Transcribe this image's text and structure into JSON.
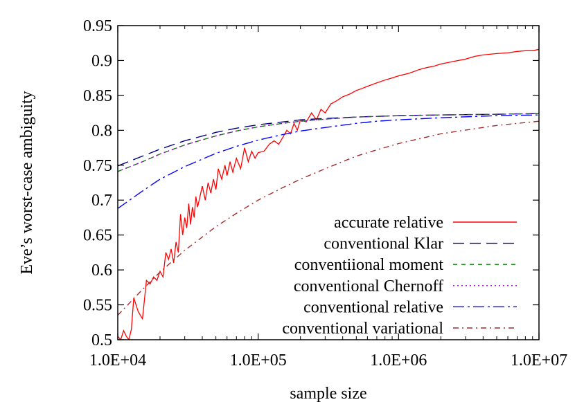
{
  "chart_data": {
    "type": "line",
    "xlabel": "sample size",
    "ylabel": "Eve’s worst-case ambiguity",
    "x_scale": "log",
    "xlim": [
      10000,
      10000000
    ],
    "ylim": [
      0.5,
      0.95
    ],
    "x_ticks": [
      {
        "value": 10000,
        "label": "1.0E+04"
      },
      {
        "value": 100000,
        "label": "1.0E+05"
      },
      {
        "value": 1000000,
        "label": "1.0E+06"
      },
      {
        "value": 10000000,
        "label": "1.0E+07"
      }
    ],
    "y_ticks": [
      {
        "value": 0.5,
        "label": "0.5"
      },
      {
        "value": 0.55,
        "label": "0.55"
      },
      {
        "value": 0.6,
        "label": "0.6"
      },
      {
        "value": 0.65,
        "label": "0.65"
      },
      {
        "value": 0.7,
        "label": "0.7"
      },
      {
        "value": 0.75,
        "label": "0.75"
      },
      {
        "value": 0.8,
        "label": "0.8"
      },
      {
        "value": 0.85,
        "label": "0.85"
      },
      {
        "value": 0.9,
        "label": "0.9"
      },
      {
        "value": 0.95,
        "label": "0.95"
      }
    ],
    "grid": false,
    "legend_position": "bottom-right",
    "series": [
      {
        "name": "accurate relative",
        "color": "#ff0000",
        "dash": "solid",
        "x": [
          10000,
          10500,
          11000,
          11500,
          12000,
          12500,
          13000,
          14000,
          15000,
          16000,
          17000,
          18000,
          19000,
          20000,
          21000,
          22000,
          23000,
          24000,
          25000,
          26000,
          27000,
          28000,
          29000,
          30000,
          31000,
          32000,
          33000,
          34000,
          35000,
          36000,
          37000,
          38000,
          40000,
          42000,
          44000,
          46000,
          48000,
          50000,
          52000,
          55000,
          58000,
          60000,
          63000,
          66000,
          70000,
          75000,
          80000,
          85000,
          90000,
          95000,
          100000,
          110000,
          120000,
          130000,
          140000,
          150000,
          160000,
          170000,
          180000,
          190000,
          200000,
          220000,
          240000,
          260000,
          280000,
          300000,
          330000,
          360000,
          400000,
          450000,
          500000,
          550000,
          600000,
          700000,
          800000,
          900000,
          1000000,
          1200000,
          1400000,
          1600000,
          1800000,
          2000000,
          2500000,
          3000000,
          3500000,
          4000000,
          5000000,
          6000000,
          7000000,
          8000000,
          9000000,
          10000000
        ],
        "values": [
          0.505,
          0.5,
          0.513,
          0.505,
          0.5,
          0.515,
          0.56,
          0.54,
          0.53,
          0.585,
          0.58,
          0.59,
          0.585,
          0.598,
          0.59,
          0.625,
          0.615,
          0.63,
          0.61,
          0.64,
          0.625,
          0.68,
          0.65,
          0.675,
          0.66,
          0.695,
          0.665,
          0.69,
          0.675,
          0.705,
          0.69,
          0.7,
          0.72,
          0.7,
          0.725,
          0.71,
          0.73,
          0.715,
          0.745,
          0.73,
          0.75,
          0.735,
          0.755,
          0.74,
          0.76,
          0.745,
          0.775,
          0.755,
          0.77,
          0.76,
          0.768,
          0.77,
          0.78,
          0.785,
          0.78,
          0.79,
          0.8,
          0.795,
          0.81,
          0.8,
          0.815,
          0.812,
          0.825,
          0.815,
          0.83,
          0.825,
          0.838,
          0.842,
          0.848,
          0.852,
          0.857,
          0.86,
          0.863,
          0.868,
          0.872,
          0.875,
          0.878,
          0.882,
          0.887,
          0.89,
          0.892,
          0.895,
          0.899,
          0.902,
          0.906,
          0.908,
          0.91,
          0.911,
          0.913,
          0.914,
          0.914,
          0.916
        ]
      },
      {
        "name": "conventional Klar",
        "color": "#000080",
        "dash": "16,8",
        "x": [
          10000,
          15000,
          20000,
          30000,
          50000,
          70000,
          100000,
          150000,
          200000,
          300000,
          500000,
          700000,
          1000000,
          2000000,
          5000000,
          10000000
        ],
        "values": [
          0.749,
          0.763,
          0.773,
          0.785,
          0.797,
          0.803,
          0.808,
          0.812,
          0.815,
          0.817,
          0.819,
          0.82,
          0.821,
          0.822,
          0.823,
          0.824
        ]
      },
      {
        "name": "conventiional moment",
        "color": "#008000",
        "dash": "6,6",
        "x": [
          10000,
          15000,
          20000,
          30000,
          50000,
          70000,
          100000,
          150000,
          200000,
          300000,
          500000,
          700000,
          1000000,
          2000000,
          5000000,
          10000000
        ],
        "values": [
          0.741,
          0.755,
          0.766,
          0.779,
          0.792,
          0.799,
          0.805,
          0.81,
          0.813,
          0.816,
          0.819,
          0.82,
          0.821,
          0.822,
          0.823,
          0.824
        ]
      },
      {
        "name": "conventional Chernoff",
        "color": "#9900cc",
        "dash": "2,4",
        "x": [
          10000,
          15000,
          20000,
          30000,
          50000,
          70000,
          100000,
          150000,
          200000,
          300000,
          500000,
          700000,
          1000000,
          2000000,
          5000000,
          10000000
        ],
        "values": [
          0.741,
          0.755,
          0.766,
          0.779,
          0.792,
          0.799,
          0.805,
          0.81,
          0.813,
          0.816,
          0.819,
          0.82,
          0.821,
          0.822,
          0.823,
          0.824
        ]
      },
      {
        "name": "conventional relative",
        "color": "#0000ff",
        "dash": "16,5,3,5",
        "x": [
          10000,
          15000,
          20000,
          30000,
          50000,
          70000,
          100000,
          150000,
          200000,
          300000,
          500000,
          700000,
          1000000,
          2000000,
          5000000,
          10000000
        ],
        "values": [
          0.688,
          0.713,
          0.73,
          0.748,
          0.767,
          0.777,
          0.786,
          0.794,
          0.799,
          0.804,
          0.81,
          0.813,
          0.815,
          0.818,
          0.821,
          0.822
        ]
      },
      {
        "name": "conventional variational",
        "color": "#a52a2a",
        "dash": "8,5,2,5",
        "x": [
          10000,
          15000,
          20000,
          30000,
          50000,
          70000,
          100000,
          150000,
          200000,
          300000,
          500000,
          700000,
          1000000,
          2000000,
          5000000,
          10000000
        ],
        "values": [
          0.535,
          0.572,
          0.597,
          0.628,
          0.662,
          0.681,
          0.7,
          0.718,
          0.73,
          0.745,
          0.763,
          0.772,
          0.781,
          0.795,
          0.807,
          0.813
        ]
      }
    ]
  }
}
